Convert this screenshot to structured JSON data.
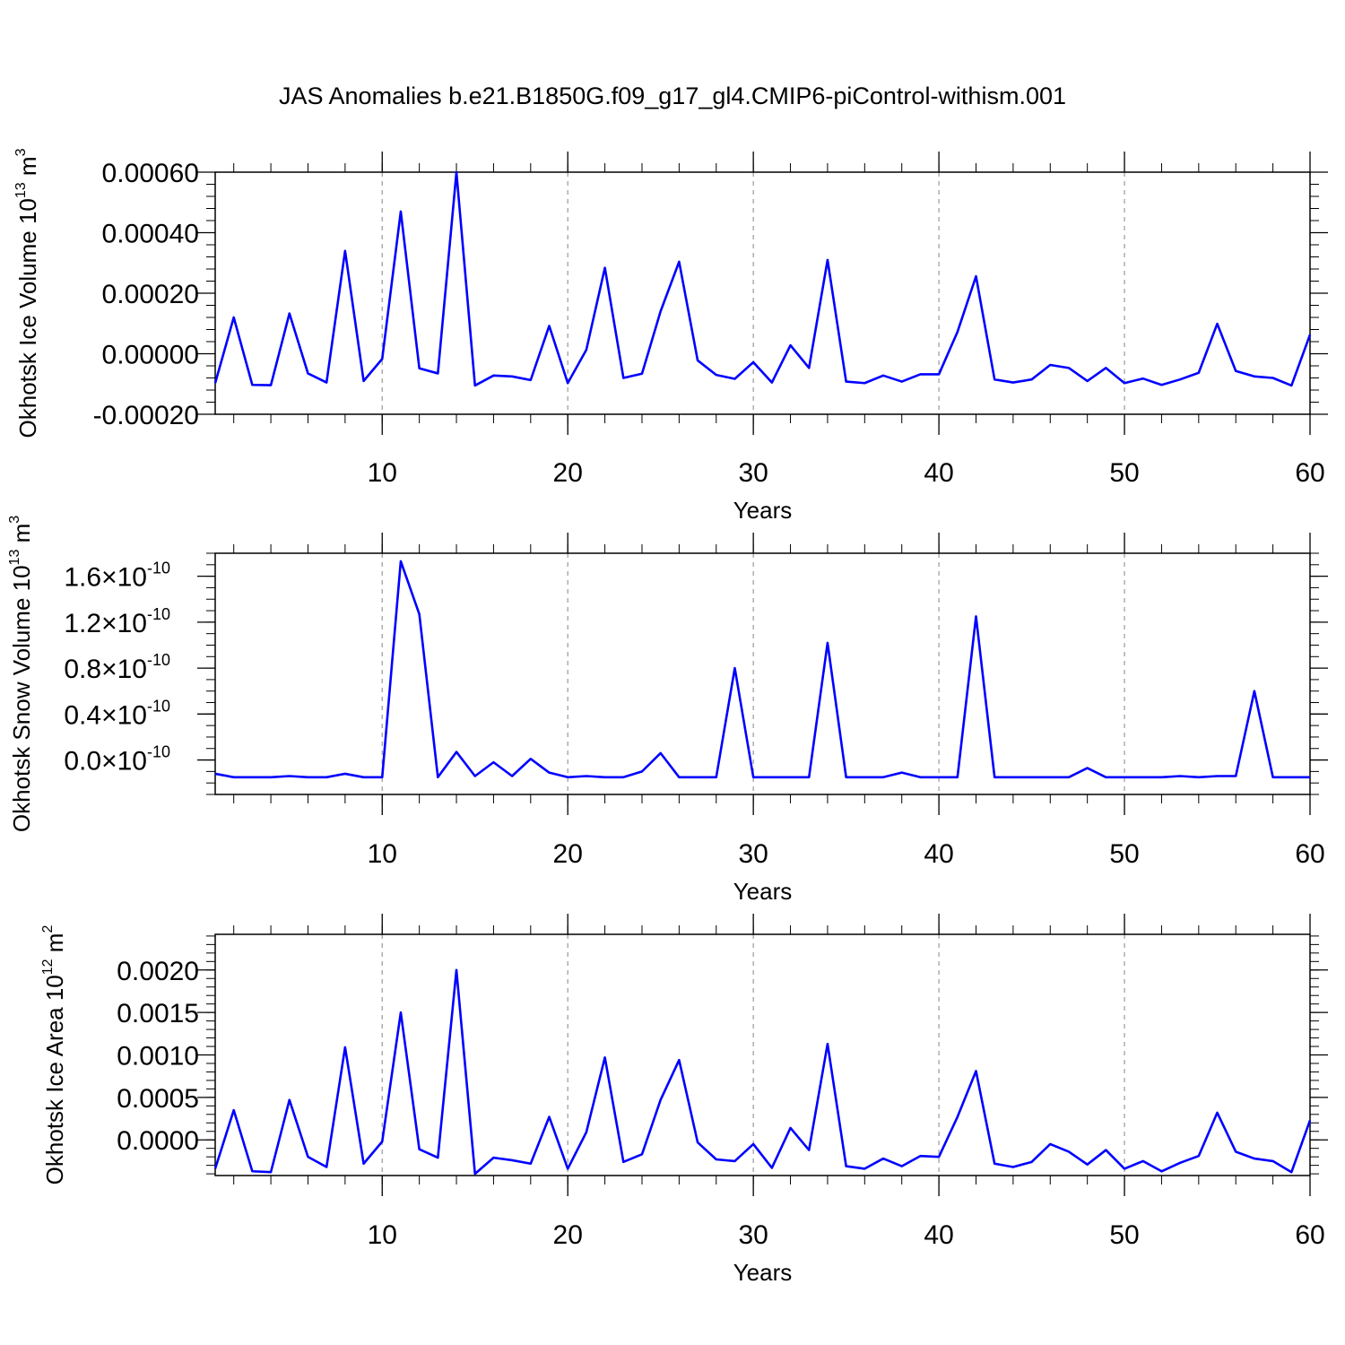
{
  "title": "JAS Anomalies b.e21.B1850G.f09_g17_gl4.CMIP6-piControl-withism.001",
  "series_color": "#0000ff",
  "chart_data": [
    {
      "type": "line",
      "ylabel": "Okhotsk Ice Volume 10",
      "ylabel_exp": "13",
      "ylabel_unit": " m",
      "ylabel_unit_exp": "3",
      "xlabel": "Years",
      "xlim": [
        1,
        60
      ],
      "ylim": [
        -0.0002,
        0.0006
      ],
      "x_ticks": [
        10,
        20,
        30,
        40,
        50,
        60
      ],
      "y_ticks": [
        {
          "value": -0.0002,
          "label": "-0.00020"
        },
        {
          "value": 0.0,
          "label": "0.00000"
        },
        {
          "value": 0.0002,
          "label": "0.00020"
        },
        {
          "value": 0.0004,
          "label": "0.00040"
        },
        {
          "value": 0.0006,
          "label": "0.00060"
        }
      ],
      "y_minor_step": 4e-05,
      "grid_x_dashed": [
        10,
        20,
        30,
        40,
        50
      ],
      "x": [
        1,
        2,
        3,
        4,
        5,
        6,
        7,
        8,
        9,
        10,
        11,
        12,
        13,
        14,
        15,
        16,
        17,
        18,
        19,
        20,
        21,
        22,
        23,
        24,
        25,
        26,
        27,
        28,
        29,
        30,
        31,
        32,
        33,
        34,
        35,
        36,
        37,
        38,
        39,
        40,
        41,
        42,
        43,
        44,
        45,
        46,
        47,
        48,
        49,
        50,
        51,
        52,
        53,
        54,
        55,
        56,
        57,
        58,
        59,
        60
      ],
      "values": [
        -9.7e-05,
        0.00012,
        -0.000103,
        -0.000104,
        0.000133,
        -6.5e-05,
        -9.5e-05,
        0.00034,
        -9e-05,
        -1.7e-05,
        0.00047,
        -4.8e-05,
        -6.5e-05,
        0.0006,
        -0.000105,
        -7.2e-05,
        -7.5e-05,
        -8.7e-05,
        9.2e-05,
        -9.7e-05,
        1.3e-05,
        0.000284,
        -8e-05,
        -6.6e-05,
        0.00014,
        0.000304,
        -2.2e-05,
        -7e-05,
        -8.3e-05,
        -2.8e-05,
        -9.5e-05,
        2.8e-05,
        -4.7e-05,
        0.00031,
        -9.2e-05,
        -9.7e-05,
        -7.2e-05,
        -9.2e-05,
        -6.8e-05,
        -6.8e-05,
        7.2e-05,
        0.000256,
        -8.5e-05,
        -9.5e-05,
        -8.5e-05,
        -3.7e-05,
        -4.7e-05,
        -9e-05,
        -4.7e-05,
        -9.7e-05,
        -8.2e-05,
        -0.000103,
        -8.5e-05,
        -6.3e-05,
        9.9e-05,
        -5.7e-05,
        -7.5e-05,
        -8e-05,
        -0.000105,
        6.3e-05
      ]
    },
    {
      "type": "line",
      "ylabel": "Okhotsk Snow Volume 10",
      "ylabel_exp": "13",
      "ylabel_unit": " m",
      "ylabel_unit_exp": "3",
      "xlabel": "Years",
      "xlim": [
        1,
        60
      ],
      "ylim": [
        -3e-11,
        1.8e-10
      ],
      "x_ticks": [
        10,
        20,
        30,
        40,
        50,
        60
      ],
      "y_ticks": [
        {
          "value": 0.0,
          "mantissa": "0.0",
          "exp": "-10"
        },
        {
          "value": 4e-11,
          "mantissa": "0.4",
          "exp": "-10"
        },
        {
          "value": 8e-11,
          "mantissa": "0.8",
          "exp": "-10"
        },
        {
          "value": 1.2e-10,
          "mantissa": "1.2",
          "exp": "-10"
        },
        {
          "value": 1.6e-10,
          "mantissa": "1.6",
          "exp": "-10"
        }
      ],
      "times_sign": "×10",
      "y_minor_step": 1e-11,
      "grid_x_dashed": [
        10,
        20,
        30,
        40,
        50
      ],
      "x": [
        1,
        2,
        3,
        4,
        5,
        6,
        7,
        8,
        9,
        10,
        11,
        12,
        13,
        14,
        15,
        16,
        17,
        18,
        19,
        20,
        21,
        22,
        23,
        24,
        25,
        26,
        27,
        28,
        29,
        30,
        31,
        32,
        33,
        34,
        35,
        36,
        37,
        38,
        39,
        40,
        41,
        42,
        43,
        44,
        45,
        46,
        47,
        48,
        49,
        50,
        51,
        52,
        53,
        54,
        55,
        56,
        57,
        58,
        59,
        60
      ],
      "values": [
        -1.2e-11,
        -1.5e-11,
        -1.5e-11,
        -1.5e-11,
        -1.4e-11,
        -1.5e-11,
        -1.5e-11,
        -1.2e-11,
        -1.5e-11,
        -1.5e-11,
        1.73e-10,
        1.27e-10,
        -1.5e-11,
        7e-12,
        -1.4e-11,
        -2e-12,
        -1.4e-11,
        1e-12,
        -1.1e-11,
        -1.5e-11,
        -1.4e-11,
        -1.5e-11,
        -1.5e-11,
        -1e-11,
        6e-12,
        -1.5e-11,
        -1.5e-11,
        -1.5e-11,
        8e-11,
        -1.5e-11,
        -1.5e-11,
        -1.5e-11,
        -1.5e-11,
        1.02e-10,
        -1.5e-11,
        -1.5e-11,
        -1.5e-11,
        -1.1e-11,
        -1.5e-11,
        -1.5e-11,
        -1.5e-11,
        1.25e-10,
        -1.5e-11,
        -1.5e-11,
        -1.5e-11,
        -1.5e-11,
        -1.5e-11,
        -7e-12,
        -1.5e-11,
        -1.5e-11,
        -1.5e-11,
        -1.5e-11,
        -1.4e-11,
        -1.5e-11,
        -1.4e-11,
        -1.4e-11,
        6e-11,
        -1.5e-11,
        -1.5e-11,
        -1.5e-11
      ]
    },
    {
      "type": "line",
      "ylabel": "Okhotsk Ice Area 10",
      "ylabel_exp": "12",
      "ylabel_unit": " m",
      "ylabel_unit_exp": "2",
      "xlabel": "Years",
      "xlim": [
        1,
        60
      ],
      "ylim": [
        -0.00042,
        0.00242
      ],
      "x_ticks": [
        10,
        20,
        30,
        40,
        50,
        60
      ],
      "y_ticks": [
        {
          "value": 0.0,
          "label": "0.0000"
        },
        {
          "value": 0.0005,
          "label": "0.0005"
        },
        {
          "value": 0.001,
          "label": "0.0010"
        },
        {
          "value": 0.0015,
          "label": "0.0015"
        },
        {
          "value": 0.002,
          "label": "0.0020"
        }
      ],
      "y_minor_step": 0.0001,
      "grid_x_dashed": [
        10,
        20,
        30,
        40,
        50
      ],
      "x": [
        1,
        2,
        3,
        4,
        5,
        6,
        7,
        8,
        9,
        10,
        11,
        12,
        13,
        14,
        15,
        16,
        17,
        18,
        19,
        20,
        21,
        22,
        23,
        24,
        25,
        26,
        27,
        28,
        29,
        30,
        31,
        32,
        33,
        34,
        35,
        36,
        37,
        38,
        39,
        40,
        41,
        42,
        43,
        44,
        45,
        46,
        47,
        48,
        49,
        50,
        51,
        52,
        53,
        54,
        55,
        56,
        57,
        58,
        59,
        60
      ],
      "values": [
        -0.00034,
        0.00035,
        -0.00037,
        -0.00038,
        0.00047,
        -0.0002,
        -0.00032,
        0.00109,
        -0.00028,
        -2e-05,
        0.0015,
        -0.00011,
        -0.00021,
        0.002,
        -0.0004,
        -0.00021,
        -0.00024,
        -0.00028,
        0.00027,
        -0.00034,
        9e-05,
        0.00097,
        -0.00026,
        -0.00017,
        0.00047,
        0.00094,
        -3e-05,
        -0.00023,
        -0.00025,
        -5e-05,
        -0.00033,
        0.00014,
        -0.00012,
        0.00113,
        -0.00031,
        -0.00034,
        -0.00022,
        -0.00031,
        -0.00019,
        -0.0002,
        0.00027,
        0.00081,
        -0.00028,
        -0.00032,
        -0.00026,
        -5e-05,
        -0.00014,
        -0.00029,
        -0.00012,
        -0.00034,
        -0.00025,
        -0.00037,
        -0.00027,
        -0.00019,
        0.00032,
        -0.00014,
        -0.00022,
        -0.00025,
        -0.00038,
        0.00023
      ]
    }
  ]
}
